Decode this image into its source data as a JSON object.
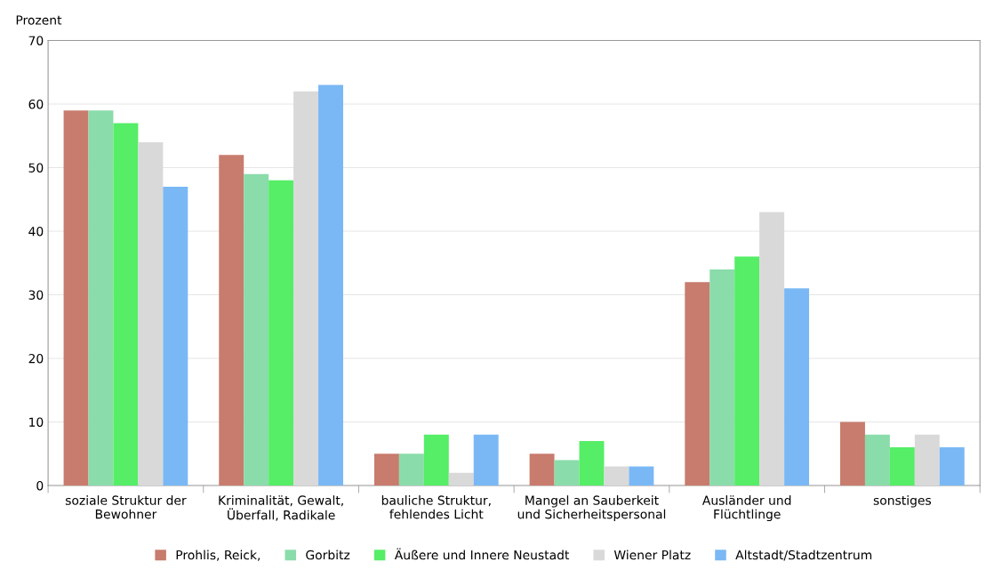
{
  "chart_data": {
    "type": "bar",
    "ylabel": "Prozent",
    "categories": [
      "soziale Struktur der\nBewohner",
      "Kriminalität, Gewalt,\nÜberfall, Radikale",
      "bauliche Struktur,\nfehlendes Licht",
      "Mangel an Sauberkeit\nund Sicherheitspersonal",
      "Ausländer und\nFlüchtlinge",
      "sonstiges"
    ],
    "series": [
      {
        "name": "Prohlis, Reick,",
        "color": "#c87c6e",
        "values": [
          59,
          52,
          5,
          5,
          32,
          10
        ]
      },
      {
        "name": "Gorbitz",
        "color": "#8adcaa",
        "values": [
          59,
          49,
          5,
          4,
          34,
          8
        ]
      },
      {
        "name": "Äußere und Innere Neustadt",
        "color": "#55ee66",
        "values": [
          57,
          48,
          8,
          7,
          36,
          6
        ]
      },
      {
        "name": "Wiener Platz",
        "color": "#d9d9d9",
        "values": [
          54,
          62,
          2,
          3,
          43,
          8
        ]
      },
      {
        "name": "Altstadt/Stadtzentrum",
        "color": "#7ab8f5",
        "values": [
          47,
          63,
          8,
          3,
          31,
          6
        ]
      }
    ],
    "ylim": [
      0,
      70
    ],
    "yticks": [
      0,
      10,
      20,
      30,
      40,
      50,
      60,
      70
    ],
    "grid": "y",
    "legend": "bottom"
  }
}
